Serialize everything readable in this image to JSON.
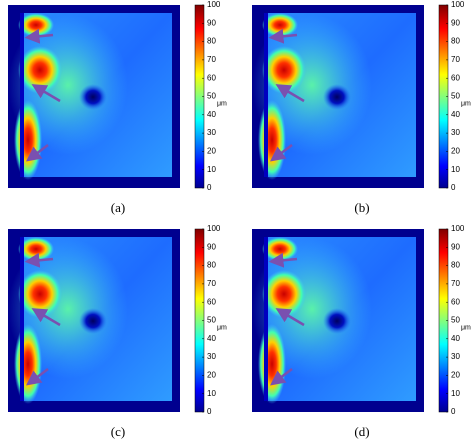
{
  "chart_data": [
    {
      "type": "heatmap",
      "caption": "(a)",
      "colorbar": {
        "label": "μm",
        "lim": [
          0,
          100
        ],
        "ticks": [
          0,
          10,
          20,
          30,
          40,
          50,
          60,
          70,
          80,
          90,
          100
        ]
      }
    },
    {
      "type": "heatmap",
      "caption": "(b)",
      "colorbar": {
        "label": "μm",
        "lim": [
          0,
          100
        ],
        "ticks": [
          0,
          10,
          20,
          30,
          40,
          50,
          60,
          70,
          80,
          90,
          100
        ]
      }
    },
    {
      "type": "heatmap",
      "caption": "(c)",
      "colorbar": {
        "label": "μm",
        "lim": [
          0,
          100
        ],
        "ticks": [
          0,
          10,
          20,
          30,
          40,
          50,
          60,
          70,
          80,
          90,
          100
        ]
      }
    },
    {
      "type": "heatmap",
      "caption": "(d)",
      "colorbar": {
        "label": "μm",
        "lim": [
          0,
          100
        ],
        "ticks": [
          0,
          10,
          20,
          30,
          40,
          50,
          60,
          70,
          80,
          90,
          100
        ]
      }
    }
  ]
}
